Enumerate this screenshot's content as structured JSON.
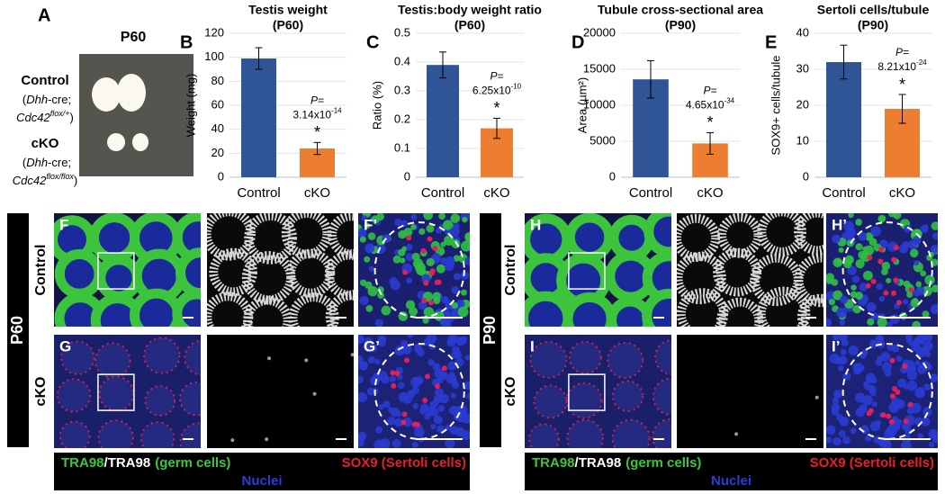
{
  "panel_a": {
    "letter": "A",
    "age": "P60",
    "control": {
      "name": "Control",
      "open": "(",
      "gene1": "Dhh",
      "rest1": "-cre;",
      "gene2": "Cdc42",
      "allele": "flox/+",
      "close": ")"
    },
    "cko": {
      "name": "cKO",
      "open": "(",
      "gene1": "Dhh",
      "rest1": "-cre;",
      "gene2": "Cdc42",
      "allele": "flox/flox",
      "close": ")"
    }
  },
  "chart_data": [
    {
      "type": "bar",
      "panel": "B",
      "title": "Testis weight",
      "subtitle": "(P60)",
      "y_label": "Weight (mg)",
      "categories": [
        "Control",
        "cKO"
      ],
      "values": [
        99,
        24
      ],
      "errors": [
        9,
        5
      ],
      "colors": [
        "#2f5597",
        "#ed7d31"
      ],
      "ylim": [
        0,
        120
      ],
      "yticks": [
        0,
        20,
        40,
        60,
        80,
        100,
        120
      ],
      "grid": true,
      "annotation": {
        "p_label": "P=",
        "p_mantissa": "3.14x10",
        "p_exponent": "-14",
        "star": "*"
      }
    },
    {
      "type": "bar",
      "panel": "C",
      "title": "Testis:body weight ratio",
      "subtitle": "(P60)",
      "y_label": "Ratio (%)",
      "categories": [
        "Control",
        "cKO"
      ],
      "values": [
        0.39,
        0.17
      ],
      "errors": [
        0.045,
        0.035
      ],
      "colors": [
        "#2f5597",
        "#ed7d31"
      ],
      "ylim": [
        0,
        0.5
      ],
      "yticks": [
        0,
        0.1,
        0.2,
        0.3,
        0.4,
        0.5
      ],
      "grid": true,
      "annotation": {
        "p_label": "P=",
        "p_mantissa": "6.25x10",
        "p_exponent": "-10",
        "star": "*"
      }
    },
    {
      "type": "bar",
      "panel": "D",
      "title": "Tubule cross-sectional area",
      "subtitle": "(P90)",
      "y_label": "Area (µm²)",
      "categories": [
        "Control",
        "cKO"
      ],
      "values": [
        13600,
        4700
      ],
      "errors": [
        2600,
        1500
      ],
      "colors": [
        "#2f5597",
        "#ed7d31"
      ],
      "ylim": [
        0,
        20000
      ],
      "yticks": [
        0,
        5000,
        10000,
        15000,
        20000
      ],
      "grid": true,
      "annotation": {
        "p_label": "P=",
        "p_mantissa": "4.65x10",
        "p_exponent": "-34",
        "star": "*"
      }
    },
    {
      "type": "bar",
      "panel": "E",
      "title": "Sertoli cells/tubule",
      "subtitle": "(P90)",
      "y_label": "SOX9+ cells/tubule",
      "categories": [
        "Control",
        "cKO"
      ],
      "values": [
        32,
        19
      ],
      "errors": [
        4.7,
        4
      ],
      "colors": [
        "#2f5597",
        "#ed7d31"
      ],
      "ylim": [
        0,
        40
      ],
      "yticks": [
        0,
        10,
        20,
        30,
        40
      ],
      "grid": true,
      "annotation": {
        "p_label": "P=",
        "p_mantissa": "8.21x10",
        "p_exponent": "-24",
        "star": "*"
      }
    }
  ],
  "images": {
    "age_left": "P60",
    "age_right": "P90",
    "control": "Control",
    "cko": "cKO",
    "labels": [
      "F",
      "F’",
      "G",
      "G’",
      "H",
      "H’",
      "I",
      "I’"
    ],
    "legend": {
      "germ_green": "TRA98",
      "slash": "/",
      "germ_white": "TRA98",
      "germ_desc": "(germ cells)",
      "sertoli": "SOX9 (Sertoli cells)",
      "nuclei": "Nuclei"
    }
  }
}
